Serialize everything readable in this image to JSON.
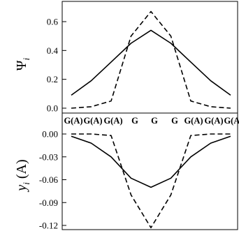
{
  "chart_data": [
    {
      "type": "line",
      "ylabel": "Ψ",
      "ylabel_subscript": "i",
      "ylim": [
        -0.02,
        0.7
      ],
      "yticks": [
        0.0,
        0.2,
        0.4,
        0.6
      ],
      "ytick_labels": [
        "0.0",
        "0.2",
        "0.4",
        "0.6"
      ],
      "x": [
        1,
        2,
        3,
        4,
        5,
        6,
        7,
        8,
        9
      ],
      "series": [
        {
          "style": "solid",
          "values": [
            0.09,
            0.19,
            0.32,
            0.45,
            0.54,
            0.45,
            0.32,
            0.19,
            0.09
          ]
        },
        {
          "style": "dashed",
          "values": [
            0.0,
            0.01,
            0.05,
            0.5,
            0.67,
            0.5,
            0.05,
            0.01,
            0.0
          ]
        }
      ]
    },
    {
      "type": "line",
      "ylabel": "y",
      "ylabel_subscript": "i",
      "ylabel_unit": " (A)",
      "categories": [
        "G(A)",
        "G(A)",
        "G(A)",
        "G",
        "G",
        "G",
        "G(A)",
        "G(A)",
        "G(A)"
      ],
      "ylim": [
        -0.12,
        0.01
      ],
      "yticks": [
        0.0,
        -0.03,
        -0.06,
        -0.09,
        -0.12
      ],
      "ytick_labels": [
        "0.00",
        "-0.03",
        "-0.06",
        "-0.09",
        "-0.12"
      ],
      "x": [
        1,
        2,
        3,
        4,
        5,
        6,
        7,
        8,
        9
      ],
      "series": [
        {
          "style": "solid",
          "values": [
            -0.003,
            -0.012,
            -0.03,
            -0.058,
            -0.07,
            -0.058,
            -0.03,
            -0.012,
            -0.003
          ]
        },
        {
          "style": "dashed",
          "values": [
            0.0,
            0.0,
            -0.002,
            -0.08,
            -0.123,
            -0.08,
            -0.002,
            0.0,
            0.0
          ]
        }
      ]
    }
  ]
}
